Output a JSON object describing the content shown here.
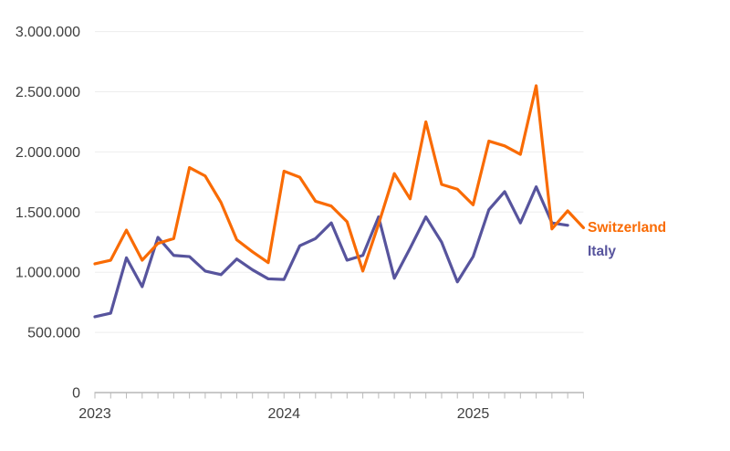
{
  "page": {
    "background_color": "#ffffff",
    "text_color": "#3f3f3f"
  },
  "chart_data": {
    "type": "line",
    "title": "",
    "x_axis": {
      "tick_labels": [
        "2023",
        "2024",
        "2025"
      ],
      "tick_label_month_indices": [
        0,
        12,
        24
      ],
      "minor_tick_count": 32
    },
    "y_axis": {
      "range": [
        0,
        3000000
      ],
      "ticks": [
        {
          "value": 0,
          "label": "0"
        },
        {
          "value": 500000,
          "label": "500.000"
        },
        {
          "value": 1000000,
          "label": "1.000.000"
        },
        {
          "value": 1500000,
          "label": "1.500.000"
        },
        {
          "value": 2000000,
          "label": "2.000.000"
        },
        {
          "value": 2500000,
          "label": "2.500.000"
        },
        {
          "value": 3000000,
          "label": "3.000.000"
        }
      ]
    },
    "grid": {
      "show_horizontal": true,
      "color": "#ededed"
    },
    "axis_color": "#a9a9a9",
    "tick_color": "#b9b9b9",
    "label_color": "#3f3f3f",
    "months": [
      "2023-01",
      "2023-02",
      "2023-03",
      "2023-04",
      "2023-05",
      "2023-06",
      "2023-07",
      "2023-08",
      "2023-09",
      "2023-10",
      "2023-11",
      "2023-12",
      "2024-01",
      "2024-02",
      "2024-03",
      "2024-04",
      "2024-05",
      "2024-06",
      "2024-07",
      "2024-08",
      "2024-09",
      "2024-10",
      "2024-11",
      "2024-12",
      "2025-01",
      "2025-02",
      "2025-03",
      "2025-04",
      "2025-05",
      "2025-06",
      "2025-07",
      "2025-08"
    ],
    "series": [
      {
        "name": "Switzerland",
        "color": "#f96b04",
        "values": [
          1070000,
          1100000,
          1350000,
          1100000,
          1240000,
          1280000,
          1870000,
          1800000,
          1580000,
          1270000,
          1170000,
          1080000,
          1840000,
          1790000,
          1590000,
          1550000,
          1420000,
          1010000,
          1400000,
          1820000,
          1610000,
          2250000,
          1730000,
          1690000,
          1560000,
          2090000,
          2050000,
          1980000,
          2550000,
          1360000,
          1510000,
          1370000
        ]
      },
      {
        "name": "Italy",
        "color": "#57549d",
        "values": [
          630000,
          660000,
          1120000,
          880000,
          1290000,
          1140000,
          1130000,
          1010000,
          980000,
          1110000,
          1020000,
          945000,
          940000,
          1220000,
          1280000,
          1410000,
          1100000,
          1140000,
          1460000,
          950000,
          1200000,
          1460000,
          1250000,
          920000,
          1130000,
          1520000,
          1670000,
          1410000,
          1710000,
          1410000,
          1390000
        ]
      }
    ],
    "legend": {
      "position": "end-of-line",
      "entries": [
        {
          "label": "Switzerland",
          "color": "#f96b04"
        },
        {
          "label": "Italy",
          "color": "#57549d"
        }
      ]
    }
  }
}
